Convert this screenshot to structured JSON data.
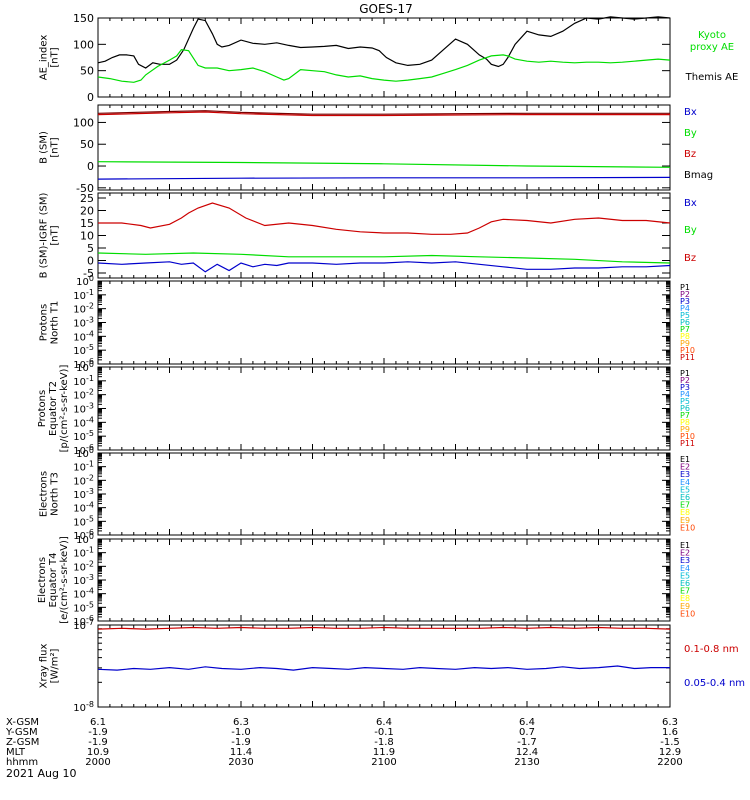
{
  "title": "GOES-17",
  "date_label": "2021 Aug 10",
  "footer": {
    "row_labels": [
      "X-GSM",
      "Y-GSM",
      "Z-GSM",
      "MLT",
      "hhmm"
    ],
    "columns": [
      [
        "6.1",
        "-1.9",
        "-1.9",
        "10.9",
        "2000"
      ],
      [
        "6.3",
        "-1.0",
        "-1.9",
        "11.4",
        "2030"
      ],
      [
        "6.4",
        "-0.1",
        "-1.8",
        "11.9",
        "2100"
      ],
      [
        "6.4",
        "0.7",
        "-1.7",
        "12.4",
        "2130"
      ],
      [
        "6.3",
        "1.6",
        "-1.5",
        "12.9",
        "2200"
      ]
    ]
  },
  "colors": {
    "black": "#000000",
    "green": "#00dd00",
    "blue": "#0000cc",
    "red": "#cc0000",
    "dark_red": "#7a0000",
    "chan": [
      "#000000",
      "#800080",
      "#0000cc",
      "#1e90ff",
      "#00bcd4",
      "#00c0c0",
      "#00dd00",
      "#ffff00",
      "#ffa500",
      "#ff4500",
      "#cc0000"
    ]
  },
  "chart_data": [
    {
      "type": "line",
      "ylabel": [
        "AE_index",
        "[nT]"
      ],
      "ylim": [
        0,
        150
      ],
      "yticks": [
        "0",
        "50",
        "100",
        "150"
      ],
      "legend": [
        {
          "text": "Kyoto",
          "color": "green"
        },
        {
          "text": "proxy AE",
          "color": "green"
        },
        {
          "text": "Themis AE",
          "color": "black"
        }
      ],
      "series": [
        {
          "name": "Themis AE",
          "color": "black",
          "x": [
            0,
            3,
            6,
            9,
            12,
            15,
            17,
            20,
            23,
            26,
            30,
            33,
            36,
            40,
            42,
            45,
            48,
            50,
            52,
            55,
            60,
            65,
            70,
            75,
            80,
            85,
            90,
            95,
            100,
            105,
            110,
            115,
            118,
            121,
            125,
            130,
            135,
            140,
            145,
            150,
            155,
            158,
            160,
            163,
            165,
            168,
            170,
            172,
            175,
            180,
            185,
            190,
            195,
            200,
            205,
            210,
            215,
            220,
            225,
            230,
            235,
            240
          ],
          "y": [
            65,
            68,
            75,
            80,
            80,
            78,
            62,
            55,
            65,
            62,
            62,
            70,
            90,
            130,
            148,
            145,
            120,
            100,
            95,
            98,
            108,
            102,
            100,
            103,
            98,
            94,
            95,
            96,
            98,
            92,
            95,
            93,
            88,
            75,
            65,
            60,
            62,
            70,
            90,
            110,
            100,
            88,
            80,
            72,
            62,
            58,
            62,
            75,
            100,
            125,
            118,
            115,
            125,
            140,
            150,
            148,
            152,
            150,
            148,
            150,
            152,
            150
          ]
        },
        {
          "name": "Kyoto proxy AE",
          "color": "green",
          "x": [
            0,
            5,
            10,
            15,
            18,
            20,
            25,
            30,
            33,
            35,
            38,
            42,
            45,
            50,
            55,
            60,
            65,
            70,
            75,
            78,
            80,
            85,
            90,
            95,
            100,
            105,
            110,
            115,
            120,
            125,
            130,
            135,
            140,
            145,
            150,
            155,
            160,
            165,
            170,
            172,
            175,
            180,
            185,
            190,
            195,
            200,
            205,
            210,
            215,
            220,
            225,
            230,
            235,
            240
          ],
          "y": [
            38,
            35,
            30,
            28,
            32,
            42,
            58,
            70,
            78,
            90,
            88,
            60,
            55,
            55,
            50,
            52,
            55,
            48,
            38,
            32,
            35,
            52,
            50,
            48,
            42,
            38,
            40,
            35,
            32,
            30,
            32,
            35,
            38,
            45,
            52,
            60,
            70,
            78,
            80,
            78,
            72,
            68,
            66,
            68,
            66,
            65,
            66,
            66,
            65,
            66,
            68,
            70,
            72,
            70
          ]
        }
      ]
    },
    {
      "type": "line",
      "ylabel": [
        "B (SM)",
        "[nT]"
      ],
      "ylim": [
        -55,
        140
      ],
      "yticks": [
        "-50",
        "0",
        "50",
        "100"
      ],
      "legend": [
        {
          "text": "Bx",
          "color": "blue"
        },
        {
          "text": "By",
          "color": "green"
        },
        {
          "text": "Bz",
          "color": "red"
        },
        {
          "text": "Bmag",
          "color": "black"
        }
      ],
      "series": [
        {
          "name": "Bx",
          "color": "blue",
          "x": [
            0,
            60,
            120,
            180,
            240
          ],
          "y": [
            -30,
            -28,
            -27,
            -27,
            -26
          ]
        },
        {
          "name": "By",
          "color": "green",
          "x": [
            0,
            60,
            120,
            180,
            240
          ],
          "y": [
            10,
            8,
            5,
            0,
            -3
          ]
        },
        {
          "name": "Bz",
          "color": "red",
          "x": [
            0,
            30,
            45,
            60,
            90,
            120,
            150,
            180,
            210,
            240
          ],
          "y": [
            118,
            122,
            124,
            120,
            116,
            116,
            117,
            118,
            118,
            118
          ]
        },
        {
          "name": "Bmag",
          "color": "dark_red",
          "x": [
            0,
            30,
            45,
            60,
            90,
            120,
            150,
            180,
            210,
            240
          ],
          "y": [
            121,
            125,
            127,
            123,
            119,
            119,
            120,
            121,
            121,
            121
          ]
        }
      ]
    },
    {
      "type": "line",
      "ylabel": [
        "B (SM)-IGRF (SM)",
        "[nT]"
      ],
      "ylim": [
        -7,
        27
      ],
      "yticks": [
        "-5",
        "0",
        "5",
        "10",
        "15",
        "20",
        "25"
      ],
      "legend": [
        {
          "text": "Bx",
          "color": "blue"
        },
        {
          "text": "By",
          "color": "green"
        },
        {
          "text": "Bz",
          "color": "red"
        }
      ],
      "series": [
        {
          "name": "Bz",
          "color": "red",
          "x": [
            0,
            10,
            18,
            22,
            30,
            35,
            38,
            42,
            48,
            55,
            62,
            70,
            80,
            90,
            100,
            110,
            120,
            130,
            140,
            148,
            155,
            160,
            165,
            170,
            180,
            190,
            200,
            210,
            220,
            230,
            240
          ],
          "y": [
            15,
            15,
            14,
            13,
            14.5,
            17,
            19,
            21,
            23,
            21,
            17,
            14,
            15,
            14,
            12.5,
            11.5,
            11,
            11,
            10.5,
            10.5,
            11,
            13,
            15.5,
            16.5,
            16,
            15,
            16.5,
            17,
            16,
            16,
            15
          ]
        },
        {
          "name": "By",
          "color": "green",
          "x": [
            0,
            20,
            40,
            60,
            80,
            100,
            120,
            140,
            160,
            180,
            200,
            220,
            240
          ],
          "y": [
            3,
            2.5,
            3,
            2.5,
            1.5,
            1.5,
            1.5,
            2,
            1.5,
            1,
            0.5,
            -0.5,
            -1
          ]
        },
        {
          "name": "Bx",
          "color": "blue",
          "x": [
            0,
            10,
            20,
            30,
            35,
            40,
            45,
            50,
            55,
            60,
            65,
            70,
            75,
            80,
            90,
            100,
            110,
            120,
            130,
            140,
            150,
            160,
            170,
            180,
            190,
            200,
            210,
            220,
            230,
            240
          ],
          "y": [
            -1,
            -1.5,
            -1,
            -0.5,
            -1.5,
            -1,
            -4.5,
            -1.5,
            -4,
            -1,
            -2.5,
            -1.5,
            -2,
            -1,
            -1,
            -1.5,
            -1,
            -1,
            -0.5,
            -1,
            -0.5,
            -1.5,
            -2.5,
            -3.5,
            -3.5,
            -3,
            -3,
            -2.5,
            -2.5,
            -2
          ]
        }
      ]
    },
    {
      "type": "line",
      "log": true,
      "ylabel": [
        "Protons",
        "North T1"
      ],
      "ylim": [
        -6,
        0
      ],
      "yticks": [
        "10^-6",
        "10^-5",
        "10^-4",
        "10^-3",
        "10^-2",
        "10^-1",
        "10^0"
      ],
      "channels": [
        "P1",
        "P2",
        "P3",
        "P4",
        "P5",
        "P6",
        "P7",
        "P8",
        "P9",
        "P10",
        "P11"
      ],
      "series": []
    },
    {
      "type": "line",
      "log": true,
      "ylabel": [
        "Protons",
        "Equator T2",
        "[p/(cm²-s-sr-keV)]"
      ],
      "ylim": [
        -6,
        0
      ],
      "yticks": [
        "10^-6",
        "10^-5",
        "10^-4",
        "10^-3",
        "10^-2",
        "10^-1",
        "10^0"
      ],
      "channels": [
        "P1",
        "P2",
        "P3",
        "P4",
        "P5",
        "P6",
        "P7",
        "P8",
        "P9",
        "P10",
        "P11"
      ],
      "series": []
    },
    {
      "type": "line",
      "log": true,
      "ylabel": [
        "Electrons",
        "North T3"
      ],
      "ylim": [
        -6,
        0
      ],
      "yticks": [
        "10^-6",
        "10^-5",
        "10^-4",
        "10^-3",
        "10^-2",
        "10^-1",
        "10^0"
      ],
      "channels": [
        "E1",
        "E2",
        "E3",
        "E4",
        "E5",
        "E6",
        "E7",
        "E8",
        "E9",
        "E10"
      ],
      "series": []
    },
    {
      "type": "line",
      "log": true,
      "ylabel": [
        "Electrons",
        "Equator T4",
        "[e/(cm²-s-sr-keV)]"
      ],
      "ylim": [
        -6,
        0
      ],
      "yticks": [
        "10^-6",
        "10^-5",
        "10^-4",
        "10^-3",
        "10^-2",
        "10^-1",
        "10^0"
      ],
      "channels": [
        "E1",
        "E2",
        "E3",
        "E4",
        "E5",
        "E6",
        "E7",
        "E8",
        "E9",
        "E10"
      ],
      "series": []
    },
    {
      "type": "line",
      "log": true,
      "ylabel": [
        "Xray flux",
        "[W/m²]"
      ],
      "ylim": [
        -8,
        -7
      ],
      "yticks": [
        "10^-8",
        "10^-7"
      ],
      "legend": [
        {
          "text": "0.1-0.8 nm",
          "color": "red"
        },
        {
          "text": "0.05-0.4 nm",
          "color": "blue"
        }
      ],
      "series": [
        {
          "name": "0.1-0.8 nm",
          "color": "red",
          "x": [
            0,
            10,
            20,
            30,
            40,
            50,
            60,
            70,
            80,
            90,
            100,
            110,
            120,
            130,
            140,
            150,
            160,
            170,
            180,
            190,
            200,
            210,
            220,
            230,
            240
          ],
          "y": [
            -7.05,
            -7.04,
            -7.05,
            -7.04,
            -7.03,
            -7.04,
            -7.03,
            -7.04,
            -7.04,
            -7.03,
            -7.04,
            -7.04,
            -7.03,
            -7.04,
            -7.04,
            -7.04,
            -7.04,
            -7.03,
            -7.04,
            -7.03,
            -7.04,
            -7.03,
            -7.04,
            -7.04,
            -7.05
          ]
        },
        {
          "name": "0.05-0.4 nm",
          "color": "blue",
          "x": [
            0,
            8,
            15,
            22,
            30,
            38,
            45,
            52,
            60,
            68,
            75,
            82,
            90,
            98,
            105,
            112,
            120,
            128,
            135,
            142,
            150,
            158,
            165,
            172,
            180,
            188,
            195,
            202,
            210,
            218,
            225,
            232,
            240
          ],
          "y": [
            -7.54,
            -7.55,
            -7.53,
            -7.54,
            -7.52,
            -7.54,
            -7.51,
            -7.53,
            -7.54,
            -7.52,
            -7.53,
            -7.55,
            -7.52,
            -7.53,
            -7.54,
            -7.52,
            -7.53,
            -7.54,
            -7.52,
            -7.53,
            -7.54,
            -7.52,
            -7.53,
            -7.52,
            -7.54,
            -7.53,
            -7.51,
            -7.53,
            -7.52,
            -7.5,
            -7.53,
            -7.52,
            -7.52
          ]
        }
      ]
    }
  ]
}
